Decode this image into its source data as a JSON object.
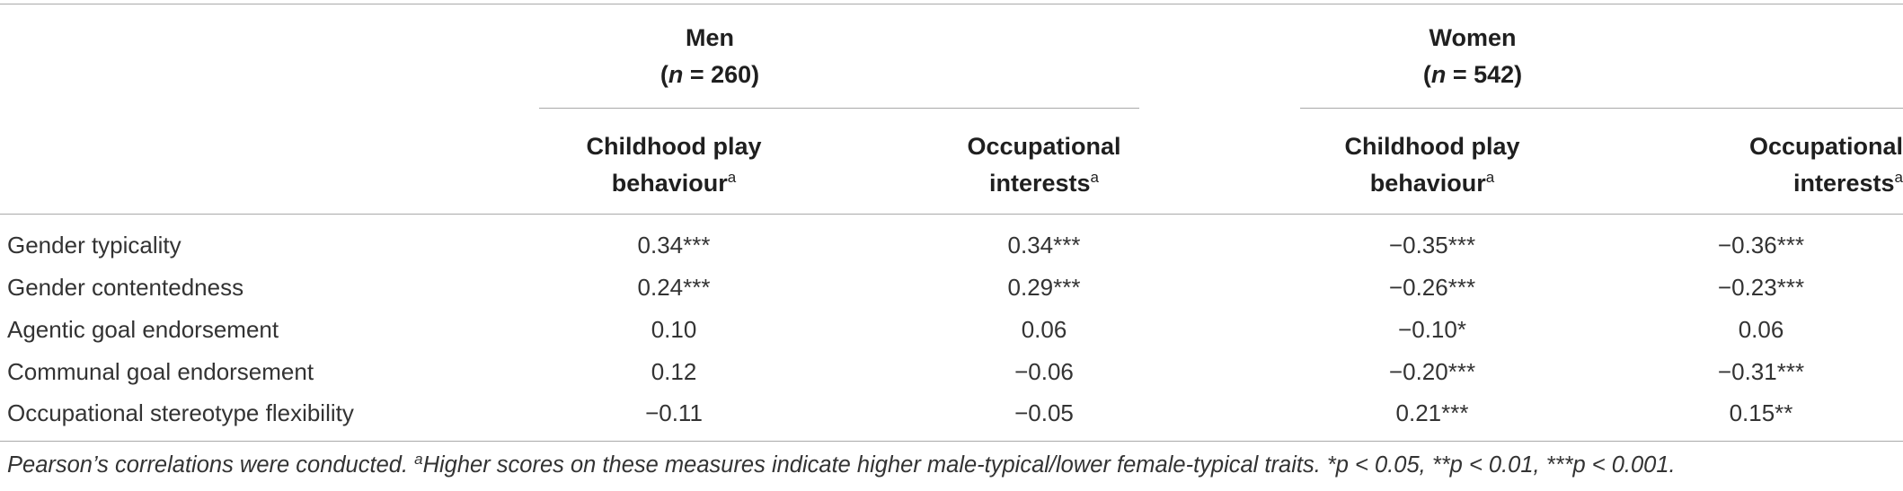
{
  "groups": [
    {
      "label": "Men",
      "n_label": "n",
      "n_value": "= 260"
    },
    {
      "label": "Women",
      "n_label": "n",
      "n_value": "= 542"
    }
  ],
  "columns": [
    {
      "line1": "Childhood play",
      "line2": "behaviour",
      "sup": "a"
    },
    {
      "line1": "Occupational",
      "line2": "interests",
      "sup": "a"
    },
    {
      "line1": "Childhood play",
      "line2": "behaviour",
      "sup": "a"
    },
    {
      "line1": "Occupational",
      "line2": "interests",
      "sup": "a"
    }
  ],
  "rows": [
    {
      "label": "Gender typicality",
      "values": [
        "0.34***",
        "0.34***",
        "−0.35***",
        "−0.36***"
      ]
    },
    {
      "label": "Gender contentedness",
      "values": [
        "0.24***",
        "0.29***",
        "−0.26***",
        "−0.23***"
      ]
    },
    {
      "label": "Agentic goal endorsement",
      "values": [
        "0.10",
        "0.06",
        "−0.10*",
        "0.06"
      ]
    },
    {
      "label": "Communal goal endorsement",
      "values": [
        "0.12",
        "−0.06",
        "−0.20***",
        "−0.31***"
      ]
    },
    {
      "label": "Occupational stereotype flexibility",
      "values": [
        "−0.11",
        "−0.05",
        "0.21***",
        "0.15**"
      ]
    }
  ],
  "footnote": {
    "part1": "Pearson’s correlations were conducted. ",
    "sup": "a",
    "part2": "Higher scores on these measures indicate higher male-typical/lower female-typical traits. *p < 0.05, **p < 0.01, ***p < 0.001."
  }
}
